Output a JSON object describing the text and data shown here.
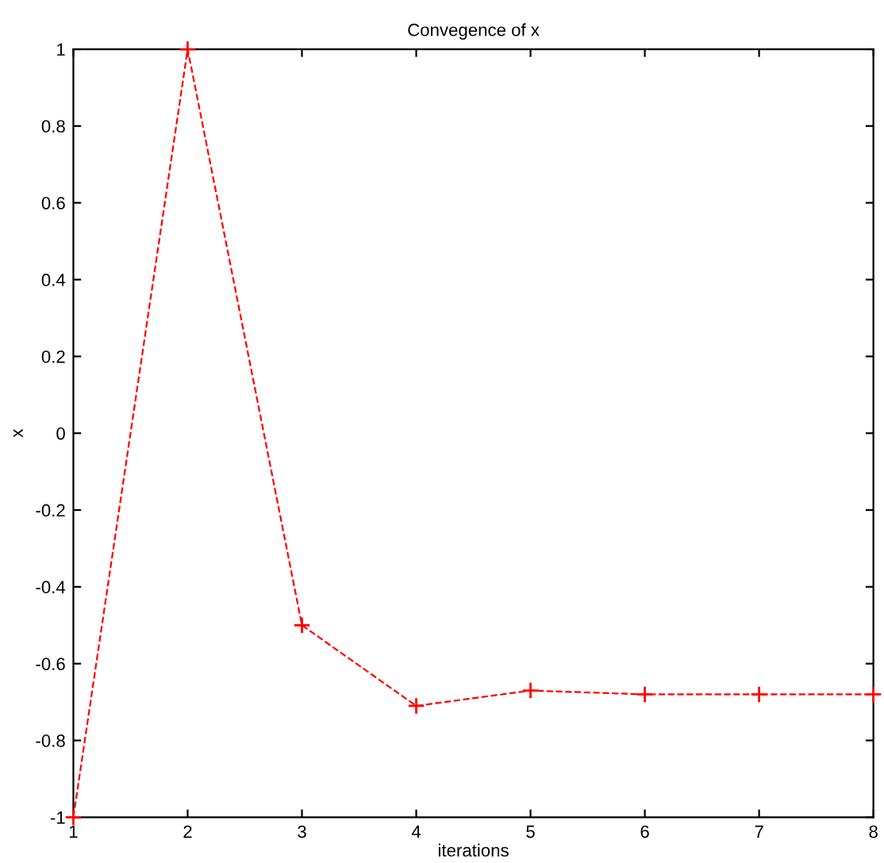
{
  "chart_data": {
    "type": "line",
    "title": "Convegence of x",
    "xlabel": "iterations",
    "ylabel": "x",
    "x": [
      1,
      2,
      3,
      4,
      5,
      6,
      7,
      8
    ],
    "series": [
      {
        "color": "#ff0000",
        "values": [
          -1,
          1,
          -0.5,
          -0.71,
          -0.67,
          -0.68,
          -0.68,
          -0.68
        ]
      }
    ],
    "xlim": [
      1,
      8
    ],
    "xticks": [
      1,
      2,
      3,
      4,
      5,
      6,
      7,
      8
    ],
    "ylim": [
      -1,
      1
    ],
    "yticks": [
      -1,
      -0.8,
      -0.6,
      -0.4,
      -0.2,
      0,
      0.2,
      0.4,
      0.6,
      0.8,
      1
    ],
    "marker": "cross",
    "line_style": "dashed",
    "grid": false
  }
}
